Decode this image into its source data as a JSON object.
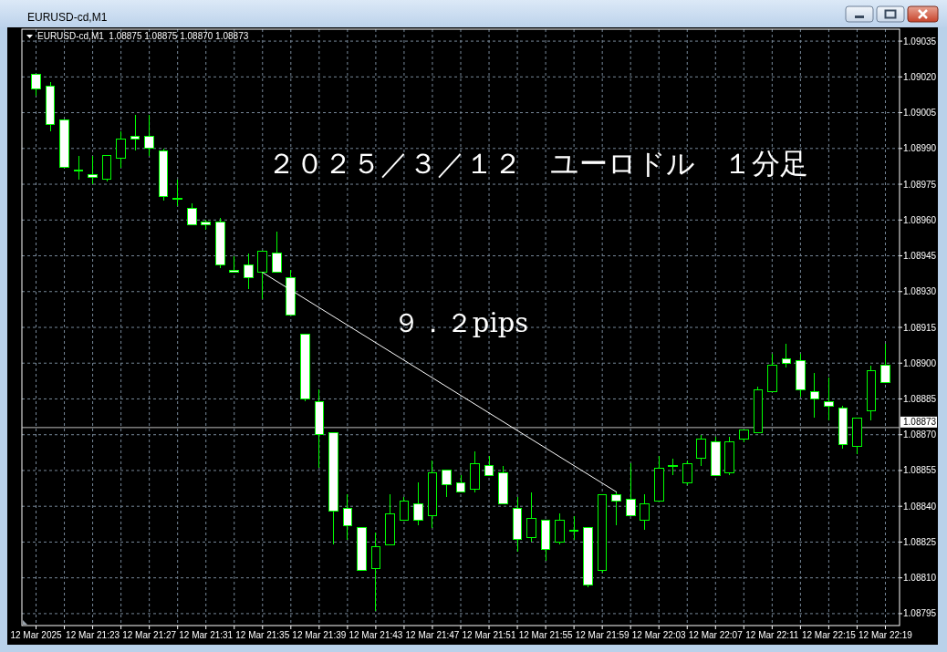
{
  "chart_data": {
    "type": "candlestick",
    "title": "２０２５／３／１２　ユーロドル　１分足",
    "subtitle": "EURUSD-cd,M1  1.08875 1.08875 1.08870 1.08873",
    "annotations": [
      "EURUSD-cd,M1",
      "９．２pips"
    ],
    "x": [
      "2025-03-12T21:19",
      "2025-03-12T21:20",
      "2025-03-12T21:21",
      "2025-03-12T21:22",
      "2025-03-12T21:23",
      "2025-03-12T21:24",
      "2025-03-12T21:25",
      "2025-03-12T21:26",
      "2025-03-12T21:27",
      "2025-03-12T21:28",
      "2025-03-12T21:29",
      "2025-03-12T21:30",
      "2025-03-12T21:31",
      "2025-03-12T21:32",
      "2025-03-12T21:33",
      "2025-03-12T21:34",
      "2025-03-12T21:35",
      "2025-03-12T21:36",
      "2025-03-12T21:37",
      "2025-03-12T21:38",
      "2025-03-12T21:39",
      "2025-03-12T21:40",
      "2025-03-12T21:41",
      "2025-03-12T21:42",
      "2025-03-12T21:43",
      "2025-03-12T21:44",
      "2025-03-12T21:45",
      "2025-03-12T21:46",
      "2025-03-12T21:47",
      "2025-03-12T21:48",
      "2025-03-12T21:49",
      "2025-03-12T21:50",
      "2025-03-12T21:51",
      "2025-03-12T21:52",
      "2025-03-12T21:53",
      "2025-03-12T21:54",
      "2025-03-12T21:55",
      "2025-03-12T21:56",
      "2025-03-12T21:57",
      "2025-03-12T21:58",
      "2025-03-12T21:59",
      "2025-03-12T22:00",
      "2025-03-12T22:01",
      "2025-03-12T22:02",
      "2025-03-12T22:03",
      "2025-03-12T22:04",
      "2025-03-12T22:05",
      "2025-03-12T22:06",
      "2025-03-12T22:07",
      "2025-03-12T22:08",
      "2025-03-12T22:09",
      "2025-03-12T22:10",
      "2025-03-12T22:11",
      "2025-03-12T22:12",
      "2025-03-12T22:13",
      "2025-03-12T22:14",
      "2025-03-12T22:15",
      "2025-03-12T22:16",
      "2025-03-12T22:17",
      "2025-03-12T22:18",
      "2025-03-12T22:19"
    ],
    "ohlc": [
      [
        1.09021,
        1.09021,
        1.09012,
        1.09015
      ],
      [
        1.09016,
        1.09018,
        1.08997,
        1.09
      ],
      [
        1.09002,
        1.09002,
        1.08982,
        1.08982
      ],
      [
        1.08981,
        1.08987,
        1.08977,
        1.08981
      ],
      [
        1.08979,
        1.08987,
        1.08975,
        1.08978
      ],
      [
        1.08977,
        1.08987,
        1.08976,
        1.08987
      ],
      [
        1.08986,
        1.08997,
        1.08982,
        1.08994
      ],
      [
        1.08995,
        1.09004,
        1.08989,
        1.08994
      ],
      [
        1.08995,
        1.09004,
        1.08987,
        1.0899
      ],
      [
        1.08989,
        1.0899,
        1.08968,
        1.0897
      ],
      [
        1.08969,
        1.08977,
        1.08966,
        1.08969
      ],
      [
        1.08965,
        1.08967,
        1.08958,
        1.08958
      ],
      [
        1.08959,
        1.0896,
        1.08956,
        1.08958
      ],
      [
        1.08959,
        1.08961,
        1.0894,
        1.08941
      ],
      [
        1.08939,
        1.08945,
        1.08938,
        1.08938
      ],
      [
        1.08941,
        1.08946,
        1.08931,
        1.08936
      ],
      [
        1.08938,
        1.08947,
        1.08927,
        1.08947
      ],
      [
        1.08946,
        1.08955,
        1.08938,
        1.08938
      ],
      [
        1.08936,
        1.08939,
        1.0892,
        1.0892
      ],
      [
        1.08912,
        1.08912,
        1.08884,
        1.08885
      ],
      [
        1.08884,
        1.08889,
        1.08856,
        1.0887
      ],
      [
        1.08871,
        1.08871,
        1.08824,
        1.08838
      ],
      [
        1.08839,
        1.08845,
        1.08826,
        1.08832
      ],
      [
        1.08831,
        1.08831,
        1.08813,
        1.08813
      ],
      [
        1.08814,
        1.08829,
        1.08796,
        1.08823
      ],
      [
        1.08824,
        1.08845,
        1.08824,
        1.08837
      ],
      [
        1.08834,
        1.08844,
        1.08834,
        1.08842
      ],
      [
        1.08841,
        1.0885,
        1.08832,
        1.08834
      ],
      [
        1.08836,
        1.08859,
        1.08831,
        1.08854
      ],
      [
        1.08855,
        1.08855,
        1.08844,
        1.08849
      ],
      [
        1.0885,
        1.08853,
        1.08846,
        1.08846
      ],
      [
        1.08847,
        1.08863,
        1.08846,
        1.08858
      ],
      [
        1.08857,
        1.08861,
        1.08853,
        1.08853
      ],
      [
        1.08854,
        1.08857,
        1.08841,
        1.08841
      ],
      [
        1.08839,
        1.08844,
        1.08821,
        1.08826
      ],
      [
        1.08827,
        1.08846,
        1.08825,
        1.08835
      ],
      [
        1.08834,
        1.08834,
        1.08817,
        1.08822
      ],
      [
        1.08825,
        1.08837,
        1.08824,
        1.08834
      ],
      [
        1.0883,
        1.08836,
        1.08826,
        1.0883
      ],
      [
        1.08831,
        1.08831,
        1.08806,
        1.08807
      ],
      [
        1.08813,
        1.08845,
        1.08812,
        1.08845
      ],
      [
        1.08845,
        1.08846,
        1.08832,
        1.08842
      ],
      [
        1.08843,
        1.08858,
        1.08836,
        1.08836
      ],
      [
        1.08834,
        1.08845,
        1.0883,
        1.08841
      ],
      [
        1.08842,
        1.08861,
        1.08842,
        1.08856
      ],
      [
        1.08857,
        1.0886,
        1.08853,
        1.08857
      ],
      [
        1.0885,
        1.08859,
        1.08849,
        1.08858
      ],
      [
        1.0886,
        1.0887,
        1.08857,
        1.08868
      ],
      [
        1.08867,
        1.08869,
        1.08853,
        1.08853
      ],
      [
        1.08854,
        1.08869,
        1.08853,
        1.08867
      ],
      [
        1.08868,
        1.08872,
        1.08867,
        1.08872
      ],
      [
        1.08871,
        1.0889,
        1.08871,
        1.08889
      ],
      [
        1.08888,
        1.08904,
        1.08888,
        1.08899
      ],
      [
        1.08902,
        1.08908,
        1.08898,
        1.089
      ],
      [
        1.08901,
        1.08904,
        1.08886,
        1.08889
      ],
      [
        1.08888,
        1.08896,
        1.08877,
        1.08885
      ],
      [
        1.08884,
        1.08894,
        1.08876,
        1.08882
      ],
      [
        1.08881,
        1.08882,
        1.08864,
        1.08866
      ],
      [
        1.08865,
        1.08877,
        1.08862,
        1.08877
      ],
      [
        1.0888,
        1.08899,
        1.08876,
        1.08897
      ],
      [
        1.08899,
        1.08908,
        1.08892,
        1.08892
      ]
    ],
    "color": "#00ff00",
    "colors": [
      "#ffffff",
      "#ffffff",
      "#ffffff",
      "#000000",
      "#ffffff",
      "#000000",
      "#000000",
      "#ffffff",
      "#ffffff",
      "#ffffff",
      "#000000",
      "#ffffff",
      "#ffffff",
      "#ffffff",
      "#ffffff",
      "#ffffff",
      "#000000",
      "#ffffff",
      "#ffffff",
      "#ffffff",
      "#ffffff",
      "#ffffff",
      "#ffffff",
      "#ffffff",
      "#000000",
      "#000000",
      "#000000",
      "#ffffff",
      "#000000",
      "#ffffff",
      "#ffffff",
      "#000000",
      "#ffffff",
      "#ffffff",
      "#ffffff",
      "#000000",
      "#ffffff",
      "#000000",
      "#000000",
      "#ffffff",
      "#000000",
      "#ffffff",
      "#ffffff",
      "#000000",
      "#000000",
      "#000000",
      "#000000",
      "#000000",
      "#ffffff",
      "#000000",
      "#000000",
      "#000000",
      "#000000",
      "#ffffff",
      "#ffffff",
      "#ffffff",
      "#ffffff",
      "#ffffff",
      "#000000",
      "#000000",
      "#ffffff"
    ],
    "series": [
      {
        "type": "line",
        "x": [
          "2025-03-12T21:35",
          "2025-03-12T22:00"
        ],
        "values": [
          1.08938,
          1.08846
        ],
        "color": "#ffffff"
      }
    ],
    "xlim": [
      "2025-03-12T21:18",
      "2025-03-12T22:20"
    ],
    "xticks": [
      {
        "value": "2025-03-12T21:19",
        "label": "12 Mar 2025"
      },
      {
        "value": "2025-03-12T21:21",
        "label": null
      },
      {
        "value": "2025-03-12T21:23",
        "label": "12 Mar 21:23"
      },
      {
        "value": "2025-03-12T21:25",
        "label": null
      },
      {
        "value": "2025-03-12T21:27",
        "label": "12 Mar 21:27"
      },
      {
        "value": "2025-03-12T21:29",
        "label": null
      },
      {
        "value": "2025-03-12T21:31",
        "label": "12 Mar 21:31"
      },
      {
        "value": "2025-03-12T21:33",
        "label": null
      },
      {
        "value": "2025-03-12T21:35",
        "label": "12 Mar 21:35"
      },
      {
        "value": "2025-03-12T21:37",
        "label": null
      },
      {
        "value": "2025-03-12T21:39",
        "label": "12 Mar 21:39"
      },
      {
        "value": "2025-03-12T21:41",
        "label": null
      },
      {
        "value": "2025-03-12T21:43",
        "label": "12 Mar 21:43"
      },
      {
        "value": "2025-03-12T21:45",
        "label": null
      },
      {
        "value": "2025-03-12T21:47",
        "label": "12 Mar 21:47"
      },
      {
        "value": "2025-03-12T21:49",
        "label": null
      },
      {
        "value": "2025-03-12T21:51",
        "label": "12 Mar 21:51"
      },
      {
        "value": "2025-03-12T21:53",
        "label": null
      },
      {
        "value": "2025-03-12T21:55",
        "label": "12 Mar 21:55"
      },
      {
        "value": "2025-03-12T21:57",
        "label": null
      },
      {
        "value": "2025-03-12T21:59",
        "label": "12 Mar 21:59"
      },
      {
        "value": "2025-03-12T22:01",
        "label": null
      },
      {
        "value": "2025-03-12T22:03",
        "label": "12 Mar 22:03"
      },
      {
        "value": "2025-03-12T22:05",
        "label": null
      },
      {
        "value": "2025-03-12T22:07",
        "label": "12 Mar 22:07"
      },
      {
        "value": "2025-03-12T22:09",
        "label": null
      },
      {
        "value": "2025-03-12T22:11",
        "label": "12 Mar 22:11"
      },
      {
        "value": "2025-03-12T22:13",
        "label": null
      },
      {
        "value": "2025-03-12T22:15",
        "label": "12 Mar 22:15"
      },
      {
        "value": "2025-03-12T22:17",
        "label": null
      },
      {
        "value": "2025-03-12T22:19",
        "label": "12 Mar 22:19"
      }
    ],
    "ylim": [
      1.0879,
      1.0904
    ],
    "yticks": [
      1.08795,
      {
        "value": 1.0881,
        "label": "1.08810"
      },
      1.08825,
      {
        "value": 1.0884,
        "label": "1.08840"
      },
      1.08855,
      {
        "value": 1.0887,
        "label": "1.08870"
      },
      1.08885,
      {
        "value": 1.089,
        "label": "1.08900"
      },
      1.08915,
      {
        "value": 1.0893,
        "label": "1.08930"
      },
      1.08945,
      {
        "value": 1.0896,
        "label": "1.08960"
      },
      1.08975,
      {
        "value": 1.0899,
        "label": "1.08990"
      },
      1.09005,
      {
        "value": 1.0902,
        "label": "1.09020"
      },
      1.09035
    ],
    "grid": true,
    "ref_lines": [
      {
        "axis": "y",
        "value": 1.08873,
        "label": "1.08873",
        "color": "#c0c0c0"
      }
    ]
  }
}
